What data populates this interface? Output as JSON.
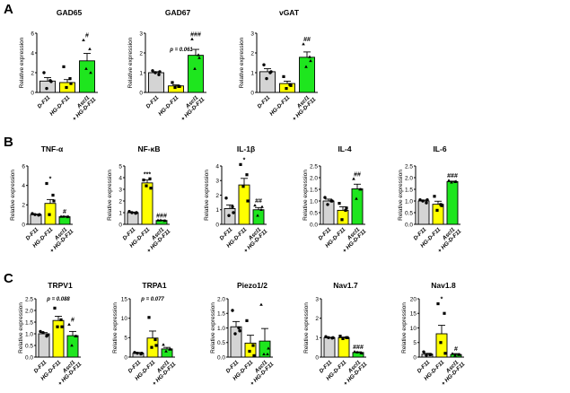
{
  "panels": [
    "A",
    "B",
    "C"
  ],
  "ylabel": "Relative expression",
  "colors": {
    "D-F11": "#d4d4d4",
    "HG-D-F11": "#ffff00",
    "Ascl1 + HG-D-F11": "#1ee61e"
  },
  "chart_data": [
    {
      "type": "bar",
      "panel": "A",
      "title": "GAD65",
      "categories": [
        "D-F11",
        "HG-D-F11",
        "Ascl1 + HG-D-F11"
      ],
      "ylim": [
        0,
        6
      ],
      "yticks": [
        0,
        2,
        4,
        6
      ],
      "values": [
        1.15,
        1.0,
        3.2
      ],
      "sem": [
        0.35,
        0.3,
        0.75
      ],
      "points": [
        [
          2.0,
          1.2,
          0.4,
          1.1
        ],
        [
          2.6,
          1.4,
          0.5,
          0.9
        ],
        [
          5.3,
          4.4,
          2.4,
          2.0
        ]
      ],
      "annotations": [
        "",
        "",
        "#"
      ],
      "pvalue": ""
    },
    {
      "type": "bar",
      "panel": "A",
      "title": "GAD67",
      "categories": [
        "D-F11",
        "HG-D-F11",
        "Ascl1 + HG-D-F11"
      ],
      "ylim": [
        0,
        3
      ],
      "yticks": [
        0,
        1,
        2,
        3
      ],
      "values": [
        1.0,
        0.33,
        1.88
      ],
      "sem": [
        0.05,
        0.05,
        0.3
      ],
      "points": [
        [
          1.1,
          0.9,
          1.0,
          1.05
        ],
        [
          0.5,
          0.3,
          0.25,
          0.3
        ],
        [
          2.7,
          1.9,
          1.2,
          1.75
        ]
      ],
      "annotations": [
        "",
        "",
        "###"
      ],
      "pvalue": "p = 0.061"
    },
    {
      "type": "bar",
      "panel": "A",
      "title": "vGAT",
      "categories": [
        "D-F11",
        "HG-D-F11",
        "Ascl1 + HG-D-F11"
      ],
      "ylim": [
        0,
        3
      ],
      "yticks": [
        0,
        1,
        2,
        3
      ],
      "values": [
        1.05,
        0.45,
        1.78
      ],
      "sem": [
        0.15,
        0.12,
        0.27
      ],
      "points": [
        [
          1.4,
          1.0,
          0.7,
          1.05
        ],
        [
          0.8,
          0.4,
          0.2,
          0.35
        ],
        [
          2.45,
          1.8,
          1.3,
          1.6
        ]
      ],
      "annotations": [
        "",
        "",
        "##"
      ],
      "pvalue": ""
    },
    {
      "type": "bar",
      "panel": "B",
      "title": "TNF-α",
      "categories": [
        "D-F11",
        "HG-D-F11",
        "Ascl1 + HG-D-F11"
      ],
      "ylim": [
        0,
        6
      ],
      "yticks": [
        0,
        2,
        4,
        6
      ],
      "values": [
        1.0,
        2.15,
        0.78
      ],
      "sem": [
        0.05,
        0.4,
        0.05
      ],
      "points": [
        [
          1.1,
          0.95,
          1.0,
          1.0
        ],
        [
          4.2,
          3.0,
          1.0,
          2.4
        ],
        [
          0.8,
          0.75,
          0.8,
          0.8
        ]
      ],
      "annotations": [
        "",
        "*",
        "#"
      ],
      "pvalue": ""
    },
    {
      "type": "bar",
      "panel": "B",
      "title": "NF-κB",
      "categories": [
        "D-F11",
        "HG-D-F11",
        "Ascl1 + HG-D-F11"
      ],
      "ylim": [
        0,
        5
      ],
      "yticks": [
        0,
        1,
        2,
        3,
        4,
        5
      ],
      "values": [
        1.0,
        3.55,
        0.33
      ],
      "sem": [
        0.05,
        0.25,
        0.03
      ],
      "points": [
        [
          1.1,
          0.95,
          1.0,
          1.0
        ],
        [
          3.8,
          3.9,
          3.3,
          3.1
        ],
        [
          0.35,
          0.3,
          0.35,
          0.32
        ]
      ],
      "annotations": [
        "",
        "***",
        "###"
      ],
      "pvalue": ""
    },
    {
      "type": "bar",
      "panel": "B",
      "title": "IL-1β",
      "categories": [
        "D-F11",
        "HG-D-F11",
        "Ascl1 + HG-D-F11"
      ],
      "ylim": [
        0,
        4
      ],
      "yticks": [
        0,
        1,
        2,
        3,
        4
      ],
      "values": [
        1.08,
        2.7,
        1.0
      ],
      "sem": [
        0.25,
        0.45,
        0.15
      ],
      "points": [
        [
          1.8,
          1.2,
          0.6,
          0.8
        ],
        [
          4.1,
          3.4,
          2.6,
          1.6
        ],
        [
          1.3,
          1.0,
          0.6,
          1.2
        ]
      ],
      "annotations": [
        "",
        "*",
        "##"
      ],
      "pvalue": ""
    },
    {
      "type": "bar",
      "panel": "B",
      "title": "IL-4",
      "categories": [
        "D-F11",
        "HG-D-F11",
        "Ascl1 + HG-D-F11"
      ],
      "ylim": [
        0,
        2.5
      ],
      "yticks": [
        0,
        0.5,
        1.0,
        1.5,
        2.0,
        2.5
      ],
      "values": [
        1.0,
        0.6,
        1.52
      ],
      "sem": [
        0.08,
        0.15,
        0.2
      ],
      "points": [
        [
          1.15,
          1.0,
          0.85,
          1.0
        ],
        [
          0.9,
          0.6,
          0.2,
          0.7
        ],
        [
          1.95,
          1.5,
          1.1,
          1.5
        ]
      ],
      "annotations": [
        "",
        "",
        "##"
      ],
      "pvalue": ""
    },
    {
      "type": "bar",
      "panel": "B",
      "title": "IL-6",
      "categories": [
        "D-F11",
        "HG-D-F11",
        "Ascl1 + HG-D-F11"
      ],
      "ylim": [
        0,
        2.5
      ],
      "yticks": [
        0,
        0.5,
        1.0,
        1.5,
        2.0,
        2.5
      ],
      "values": [
        1.0,
        0.86,
        1.83
      ],
      "sem": [
        0.04,
        0.13,
        0.02
      ],
      "points": [
        [
          1.05,
          0.92,
          1.0,
          1.05
        ],
        [
          1.2,
          0.85,
          0.6,
          0.8
        ],
        [
          1.88,
          1.82,
          1.8,
          1.84
        ]
      ],
      "annotations": [
        "",
        "",
        "###"
      ],
      "pvalue": ""
    },
    {
      "type": "bar",
      "panel": "C",
      "title": "TRPV1",
      "categories": [
        "D-F11",
        "HG-D-F11",
        "Ascl1 + HG-D-F11"
      ],
      "ylim": [
        0,
        2.5
      ],
      "yticks": [
        0,
        0.5,
        1.0,
        1.5,
        2.0,
        2.5
      ],
      "values": [
        1.0,
        1.57,
        0.92
      ],
      "sem": [
        0.05,
        0.18,
        0.18
      ],
      "points": [
        [
          1.1,
          0.9,
          1.05,
          0.95
        ],
        [
          2.1,
          1.6,
          1.3,
          1.3
        ],
        [
          1.4,
          0.9,
          0.5,
          0.9
        ]
      ],
      "annotations": [
        "",
        "",
        "#"
      ],
      "pvalue": "p = 0.088"
    },
    {
      "type": "bar",
      "panel": "C",
      "title": "TRPA1",
      "categories": [
        "D-F11",
        "HG-D-F11",
        "Ascl1 + HG-D-F11"
      ],
      "ylim": [
        0,
        15
      ],
      "yticks": [
        0,
        5,
        10,
        15
      ],
      "values": [
        1.0,
        4.9,
        2.1
      ],
      "sem": [
        0.2,
        1.8,
        0.4
      ],
      "points": [
        [
          1.2,
          0.8,
          1.0,
          1.0
        ],
        [
          10.2,
          4.5,
          2.5,
          3.0
        ],
        [
          3.2,
          2.0,
          1.5,
          2.0
        ]
      ],
      "annotations": [
        "",
        "",
        ""
      ],
      "pvalue": "p = 0.077"
    },
    {
      "type": "bar",
      "panel": "C",
      "title": "Piezo1/2",
      "categories": [
        "D-F11",
        "HG-D-F11",
        "Ascl1 + HG-D-F11"
      ],
      "ylim": [
        0,
        2.0
      ],
      "yticks": [
        0,
        0.5,
        1.0,
        1.5,
        2.0
      ],
      "values": [
        1.04,
        0.48,
        0.55
      ],
      "sem": [
        0.18,
        0.27,
        0.43
      ],
      "points": [
        [
          1.6,
          1.0,
          0.8,
          0.9
        ],
        [
          1.25,
          0.4,
          0.2,
          0.05
        ],
        [
          1.8,
          0.1,
          0.1,
          0.3
        ]
      ],
      "annotations": [
        "",
        "",
        ""
      ],
      "pvalue": ""
    },
    {
      "type": "bar",
      "panel": "C",
      "title": "Nav1.7",
      "categories": [
        "D-F11",
        "HG-D-F11",
        "Ascl1 + HG-D-F11"
      ],
      "ylim": [
        0,
        3
      ],
      "yticks": [
        0,
        1,
        2,
        3
      ],
      "values": [
        1.0,
        1.0,
        0.24
      ],
      "sem": [
        0.02,
        0.03,
        0.03
      ],
      "points": [
        [
          1.05,
          0.98,
          1.0,
          1.0
        ],
        [
          1.08,
          1.0,
          0.95,
          1.0
        ],
        [
          0.28,
          0.22,
          0.25,
          0.2
        ]
      ],
      "annotations": [
        "",
        "",
        "###"
      ],
      "pvalue": ""
    },
    {
      "type": "bar",
      "panel": "C",
      "title": "Nav1.8",
      "categories": [
        "D-F11",
        "HG-D-F11",
        "Ascl1 + HG-D-F11"
      ],
      "ylim": [
        0,
        20
      ],
      "yticks": [
        0,
        5,
        10,
        15,
        20
      ],
      "values": [
        1.0,
        8.0,
        0.9
      ],
      "sem": [
        0.3,
        2.9,
        0.3
      ],
      "points": [
        [
          1.8,
          0.8,
          0.6,
          0.9
        ],
        [
          18.3,
          15.0,
          5.0,
          1.3
        ],
        [
          1.2,
          0.8,
          0.6,
          0.9
        ]
      ],
      "annotations": [
        "",
        "*",
        "#"
      ],
      "pvalue": ""
    }
  ]
}
